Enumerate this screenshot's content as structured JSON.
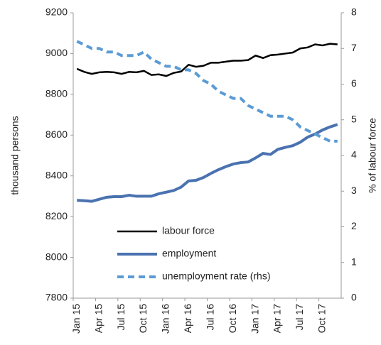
{
  "chart_data": {
    "type": "line",
    "ylabel": "thousand persons",
    "y2label": "% of labour force",
    "categories": [
      "Jan 15",
      null,
      null,
      "Apr 15",
      null,
      null,
      "Jul 15",
      null,
      null,
      "Oct 15",
      null,
      null,
      "Jan 16",
      null,
      null,
      "Apr 16",
      null,
      null,
      "Jul 16",
      null,
      null,
      "Oct 16",
      null,
      null,
      "Jan 17",
      null,
      null,
      "Apr 17",
      null,
      null,
      "Jul 17",
      null,
      null,
      "Oct 17",
      null,
      null
    ],
    "series": [
      {
        "name": "labour force",
        "color": "#000000",
        "dash": false,
        "width": 2.5,
        "values": [
          8925,
          8910,
          8900,
          8908,
          8910,
          8908,
          8900,
          8910,
          8908,
          8915,
          8895,
          8898,
          8890,
          8905,
          8912,
          8945,
          8935,
          8940,
          8955,
          8955,
          8960,
          8965,
          8965,
          8968,
          8990,
          8978,
          8992,
          8995,
          9000,
          9005,
          9025,
          9030,
          9045,
          9040,
          9048,
          9045
        ]
      },
      {
        "name": "employment",
        "color": "#4a72b0",
        "dash": false,
        "width": 4,
        "values": [
          8280,
          8278,
          8275,
          8285,
          8295,
          8298,
          8298,
          8305,
          8300,
          8300,
          8300,
          8312,
          8320,
          8328,
          8345,
          8375,
          8378,
          8392,
          8412,
          8430,
          8445,
          8458,
          8465,
          8468,
          8488,
          8510,
          8505,
          8530,
          8540,
          8548,
          8565,
          8590,
          8605,
          8625,
          8640,
          8652
        ]
      },
      {
        "name": "unemployment rate (rhs)",
        "color": "#5b9bd5",
        "dash": true,
        "width": 4,
        "axis": "y2",
        "values": [
          7.2,
          7.1,
          7.0,
          7.0,
          6.9,
          6.9,
          6.8,
          6.8,
          6.8,
          6.9,
          6.7,
          6.6,
          6.5,
          6.5,
          6.4,
          6.4,
          6.3,
          6.1,
          6.0,
          5.8,
          5.7,
          5.6,
          5.6,
          5.4,
          5.3,
          5.2,
          5.1,
          5.1,
          5.1,
          5.0,
          4.8,
          4.7,
          4.6,
          4.5,
          4.4,
          4.4
        ]
      }
    ],
    "ylim": [
      7800,
      9200
    ],
    "yticks": [
      7800,
      8000,
      8200,
      8400,
      8600,
      8800,
      9000,
      9200
    ],
    "y2lim": [
      0,
      8
    ],
    "y2ticks": [
      0,
      1,
      2,
      3,
      4,
      5,
      6,
      7,
      8
    ],
    "grid": false,
    "legend": "bottom-center"
  }
}
